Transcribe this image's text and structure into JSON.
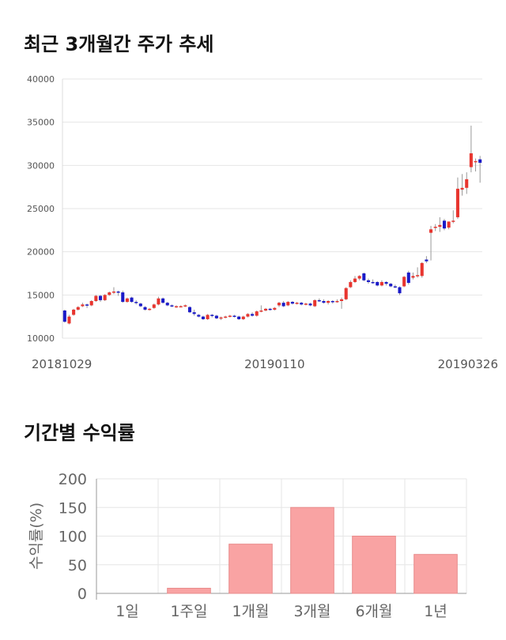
{
  "sections": {
    "price_title": "최근 3개월간 주가 추세",
    "return_title": "기간별 수익률"
  },
  "colors": {
    "up": "#e8352f",
    "down": "#1a1ac8",
    "bar": "#f9a3a3",
    "bar_edge": "#e88c8c",
    "grid": "#e6e6e6"
  },
  "chart_data": [
    {
      "type": "candlestick",
      "title": "최근 3개월간 주가 추세",
      "ylim": [
        10000,
        40000
      ],
      "yticks": [
        10000,
        15000,
        20000,
        25000,
        30000,
        35000,
        40000
      ],
      "x_labels": [
        {
          "index": 0,
          "label": "20181029"
        },
        {
          "index": 47,
          "label": "20190110"
        },
        {
          "index": 95,
          "label": "20190326"
        }
      ],
      "grid": true,
      "candles": [
        [
          13200,
          13300,
          11800,
          11900
        ],
        [
          11700,
          12700,
          11600,
          12500
        ],
        [
          12700,
          13400,
          12600,
          13300
        ],
        [
          13300,
          13700,
          13200,
          13600
        ],
        [
          13700,
          14100,
          13600,
          13900
        ],
        [
          13900,
          14000,
          13500,
          13800
        ],
        [
          13800,
          14400,
          13700,
          14300
        ],
        [
          14300,
          15000,
          14200,
          14900
        ],
        [
          14900,
          15000,
          14200,
          14400
        ],
        [
          14400,
          15100,
          14300,
          15000
        ],
        [
          15000,
          15400,
          14900,
          15300
        ],
        [
          15300,
          15900,
          15100,
          15400
        ],
        [
          15400,
          15500,
          14900,
          15300
        ],
        [
          15300,
          15500,
          14100,
          14200
        ],
        [
          14200,
          14700,
          14100,
          14600
        ],
        [
          14700,
          14800,
          14100,
          14200
        ],
        [
          14200,
          14400,
          13900,
          14100
        ],
        [
          14000,
          14100,
          13600,
          13700
        ],
        [
          13600,
          13700,
          13200,
          13300
        ],
        [
          13300,
          13500,
          13200,
          13400
        ],
        [
          13500,
          14000,
          13400,
          13900
        ],
        [
          13900,
          14800,
          13800,
          14600
        ],
        [
          14600,
          14700,
          14000,
          14100
        ],
        [
          14100,
          14200,
          13700,
          13800
        ],
        [
          13800,
          13900,
          13600,
          13700
        ],
        [
          13700,
          13800,
          13500,
          13700
        ],
        [
          13700,
          13800,
          13600,
          13700
        ],
        [
          13700,
          13900,
          13600,
          13800
        ],
        [
          13600,
          13700,
          12900,
          13000
        ],
        [
          13000,
          13300,
          12600,
          12800
        ],
        [
          12700,
          12800,
          12400,
          12500
        ],
        [
          12500,
          12600,
          12100,
          12200
        ],
        [
          12200,
          12800,
          12100,
          12700
        ],
        [
          12700,
          12800,
          12400,
          12600
        ],
        [
          12600,
          12700,
          12200,
          12300
        ],
        [
          12300,
          12500,
          12100,
          12400
        ],
        [
          12400,
          12600,
          12300,
          12500
        ],
        [
          12500,
          12700,
          12400,
          12600
        ],
        [
          12600,
          12700,
          12400,
          12500
        ],
        [
          12500,
          12600,
          12100,
          12200
        ],
        [
          12200,
          12600,
          12100,
          12500
        ],
        [
          12500,
          12900,
          12400,
          12800
        ],
        [
          12800,
          13000,
          12500,
          12600
        ],
        [
          12600,
          13200,
          12500,
          13100
        ],
        [
          13100,
          13800,
          13000,
          13200
        ],
        [
          13200,
          13500,
          13100,
          13400
        ],
        [
          13400,
          13500,
          13200,
          13300
        ],
        [
          13300,
          13600,
          13200,
          13500
        ],
        [
          13800,
          14200,
          13600,
          14100
        ],
        [
          14100,
          14300,
          13600,
          13700
        ],
        [
          13800,
          14300,
          13700,
          14200
        ],
        [
          14200,
          14300,
          13900,
          14000
        ],
        [
          14000,
          14200,
          13900,
          14100
        ],
        [
          14100,
          14200,
          13800,
          13900
        ],
        [
          13900,
          14100,
          13800,
          14000
        ],
        [
          14000,
          14100,
          13700,
          13800
        ],
        [
          13700,
          14500,
          13600,
          14400
        ],
        [
          14400,
          14600,
          14200,
          14300
        ],
        [
          14300,
          14500,
          14000,
          14100
        ],
        [
          14100,
          14400,
          13900,
          14300
        ],
        [
          14300,
          14400,
          14000,
          14200
        ],
        [
          14200,
          14500,
          14100,
          14300
        ],
        [
          14300,
          14700,
          13400,
          14500
        ],
        [
          14500,
          15900,
          14400,
          15800
        ],
        [
          15900,
          16700,
          15800,
          16500
        ],
        [
          16500,
          17200,
          16400,
          16900
        ],
        [
          16900,
          17300,
          16700,
          17200
        ],
        [
          17500,
          17600,
          16600,
          16700
        ],
        [
          16700,
          16900,
          16300,
          16500
        ],
        [
          16500,
          16800,
          16300,
          16400
        ],
        [
          16500,
          16600,
          16000,
          16100
        ],
        [
          16100,
          16700,
          16000,
          16500
        ],
        [
          16500,
          16600,
          16100,
          16300
        ],
        [
          16300,
          16400,
          15900,
          16000
        ],
        [
          16000,
          16200,
          15800,
          15900
        ],
        [
          15900,
          16000,
          15000,
          15200
        ],
        [
          16000,
          17200,
          15900,
          17100
        ],
        [
          17600,
          17800,
          16200,
          16400
        ],
        [
          17000,
          17600,
          16800,
          17200
        ],
        [
          17200,
          18200,
          17000,
          17300
        ],
        [
          17200,
          18800,
          17000,
          18700
        ],
        [
          19100,
          19500,
          18700,
          18900
        ],
        [
          22200,
          23000,
          19000,
          22600
        ],
        [
          22800,
          23200,
          22400,
          22900
        ],
        [
          22900,
          24000,
          22300,
          23100
        ],
        [
          23600,
          23800,
          22500,
          22700
        ],
        [
          22800,
          23500,
          22600,
          23500
        ],
        [
          23500,
          24800,
          23300,
          23600
        ],
        [
          24000,
          28600,
          23800,
          27300
        ],
        [
          27200,
          29000,
          26500,
          27400
        ],
        [
          27400,
          29200,
          26700,
          28400
        ],
        [
          29800,
          34600,
          29200,
          31400
        ],
        [
          30400,
          30800,
          29300,
          30500
        ],
        [
          30700,
          31100,
          28000,
          30300
        ]
      ]
    },
    {
      "type": "bar",
      "categories": [
        "1일",
        "1주일",
        "1개월",
        "3개월",
        "6개월",
        "1년"
      ],
      "values": [
        0,
        9,
        86,
        150,
        100,
        68
      ],
      "ylabel": "수익률(%)",
      "ylim": [
        0,
        200
      ],
      "yticks": [
        0,
        50,
        100,
        150,
        200
      ],
      "grid": true
    }
  ]
}
